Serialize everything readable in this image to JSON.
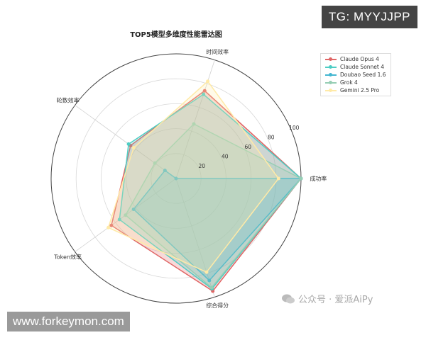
{
  "chart_data": {
    "type": "radar",
    "title": "TOP5模型多维度性能雷达图",
    "axes": [
      "成功率",
      "时间效率",
      "轮数效率",
      "Token效率",
      "综合得分"
    ],
    "rlim": [
      0,
      100
    ],
    "rticks": [
      20,
      40,
      60,
      80,
      100
    ],
    "grid": true,
    "legend_position": "top-right",
    "series": [
      {
        "name": "Claude Opus 4",
        "color": "#e06666",
        "values": [
          100,
          74,
          45,
          64,
          95
        ]
      },
      {
        "name": "Claude Sonnet 4",
        "color": "#4ecdc4",
        "values": [
          100,
          71,
          47,
          56,
          93
        ]
      },
      {
        "name": "Doubao Seed 1.6",
        "color": "#45b7d1",
        "values": [
          100,
          0,
          11,
          42,
          86
        ]
      },
      {
        "name": "Grok 4",
        "color": "#96ceb4",
        "values": [
          100,
          46,
          21,
          50,
          92
        ]
      },
      {
        "name": "Gemini 2.5 Pro",
        "color": "#ffeaa7",
        "values": [
          82,
          82,
          42,
          67,
          79
        ]
      }
    ]
  },
  "watermarks": {
    "tg": "TG: MYYJJPP",
    "site": "www.forkeymon.com",
    "wechat": "公众号 · 爱派AiPy"
  }
}
